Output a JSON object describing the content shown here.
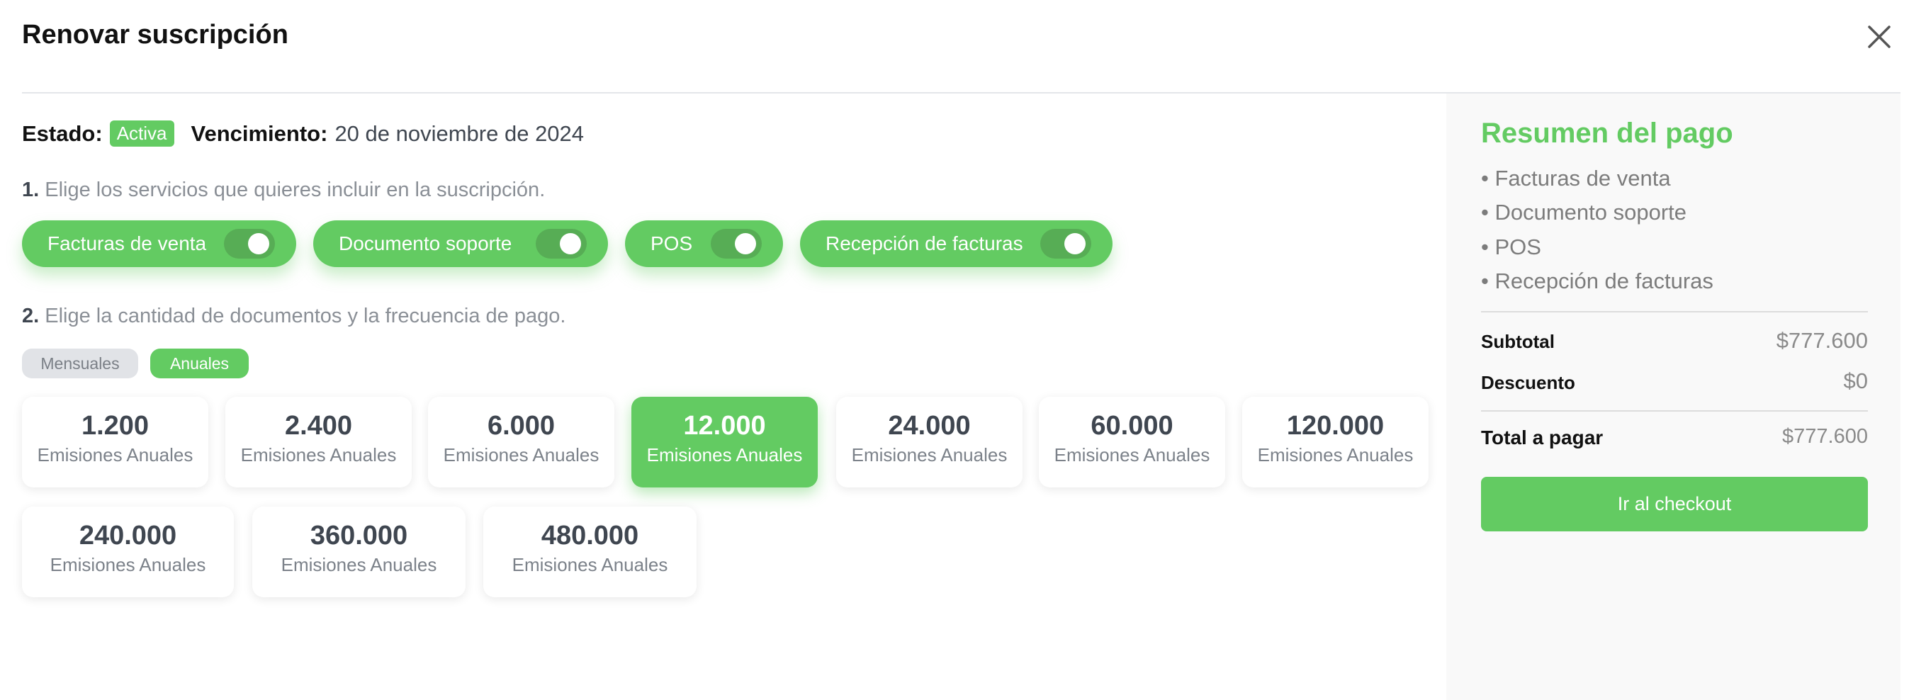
{
  "modal": {
    "title": "Renovar suscripción",
    "close_icon": "close-icon"
  },
  "status": {
    "estado_label": "Estado:",
    "estado_value": "Activa",
    "vencimiento_label": "Vencimiento:",
    "vencimiento_value": "20 de noviembre de 2024"
  },
  "step1": {
    "number": "1.",
    "text": "Elige los servicios que quieres incluir en la suscripción.",
    "services": [
      {
        "label": "Facturas de venta",
        "on": true
      },
      {
        "label": "Documento soporte",
        "on": true
      },
      {
        "label": "POS",
        "on": true
      },
      {
        "label": "Recepción de facturas",
        "on": true
      }
    ]
  },
  "step2": {
    "number": "2.",
    "text": "Elige la cantidad de documentos y la frecuencia de pago.",
    "frequency": [
      {
        "label": "Mensuales",
        "selected": false
      },
      {
        "label": "Anuales",
        "selected": true
      }
    ],
    "plans": [
      {
        "amount": "1.200",
        "unit": "Emisiones Anuales"
      },
      {
        "amount": "2.400",
        "unit": "Emisiones Anuales"
      },
      {
        "amount": "6.000",
        "unit": "Emisiones Anuales"
      },
      {
        "amount": "12.000",
        "unit": "Emisiones Anuales",
        "selected": true
      },
      {
        "amount": "24.000",
        "unit": "Emisiones Anuales"
      },
      {
        "amount": "60.000",
        "unit": "Emisiones Anuales"
      },
      {
        "amount": "120.000",
        "unit": "Emisiones Anuales"
      },
      {
        "amount": "240.000",
        "unit": "Emisiones Anuales"
      },
      {
        "amount": "360.000",
        "unit": "Emisiones Anuales"
      },
      {
        "amount": "480.000",
        "unit": "Emisiones Anuales"
      }
    ]
  },
  "summary": {
    "title": "Resumen del pago",
    "items": [
      "• Facturas de venta",
      "• Documento soporte",
      "• POS",
      "• Recepción de facturas"
    ],
    "subtotal_label": "Subtotal",
    "subtotal": "$777.600",
    "discount_label": "Descuento",
    "discount": "$0",
    "total_label": "Total a pagar",
    "total": "$777.600",
    "checkout_label": "Ir al checkout"
  },
  "colors": {
    "accent": "#63cb62",
    "toggle_track": "#57ad55"
  }
}
